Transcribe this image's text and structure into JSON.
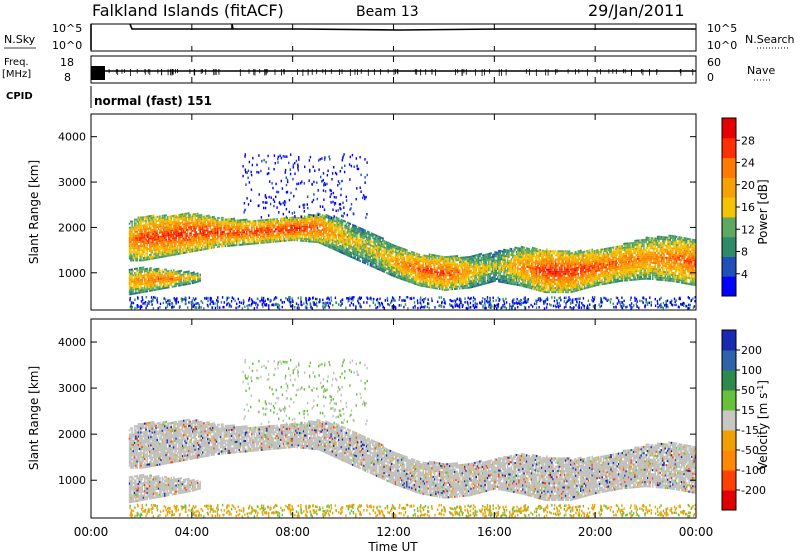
{
  "header": {
    "station": "Falkland Islands (fitACF)",
    "beam": "Beam 13",
    "date": "29/Jan/2011"
  },
  "top_panels": {
    "nsky": {
      "label": "N.Sky",
      "ticks": [
        "10^5",
        "10^0"
      ],
      "right_label": "N.Search",
      "right_ticks": [
        "10^5",
        "10^0"
      ]
    },
    "freq": {
      "label_line1": "Freq.",
      "label_line2": "[MHz]",
      "ticks": [
        "18",
        "8"
      ],
      "right_label": "Nave",
      "right_ticks": [
        "60",
        "0"
      ]
    },
    "cpid": {
      "label": "CPID",
      "mode_text": "normal (fast) 151"
    }
  },
  "colors": {
    "power_scale": [
      "#0000ff",
      "#1f4fb8",
      "#2f8a6a",
      "#5fa85f",
      "#f5c400",
      "#f5a300",
      "#ff7a00",
      "#ff3000",
      "#e60000"
    ],
    "velocity_scale": [
      "#1a2ab0",
      "#2f62a8",
      "#2e8a4a",
      "#66c23a",
      "#c8c8c0",
      "#f0a000",
      "#ff8800",
      "#ff4000",
      "#e00000"
    ],
    "ground_scatter": "#c0c0bc"
  },
  "chart_data": [
    {
      "type": "heatmap",
      "name_hint": "power",
      "ylabel": "Slant Range [km]",
      "yticks": [
        "1000",
        "2000",
        "3000",
        "4000"
      ],
      "ylim": [
        180,
        4500
      ],
      "xlim": [
        0,
        24
      ],
      "xticks": [
        "00:00",
        "04:00",
        "08:00",
        "12:00",
        "16:00",
        "20:00",
        "00:00"
      ],
      "colorbar": {
        "label": "Power [dB]",
        "ticks": [
          "4",
          "8",
          "12",
          "16",
          "20",
          "24",
          "28"
        ],
        "range": [
          0,
          32
        ]
      },
      "bands": [
        {
          "kind": "main",
          "x": [
            1.5,
            2,
            3,
            4,
            5,
            6,
            7,
            8,
            9,
            10,
            11,
            12,
            13,
            14,
            15,
            16,
            17,
            18,
            19,
            20,
            21,
            22,
            23,
            24
          ],
          "lower": [
            1250,
            1250,
            1350,
            1450,
            1550,
            1600,
            1650,
            1700,
            1650,
            1400,
            1150,
            900,
            700,
            600,
            650,
            800,
            700,
            550,
            550,
            700,
            800,
            850,
            800,
            700
          ],
          "upper": [
            2100,
            2250,
            2250,
            2300,
            2200,
            2150,
            2150,
            2200,
            2300,
            2150,
            1900,
            1600,
            1400,
            1350,
            1350,
            1450,
            1550,
            1500,
            1450,
            1500,
            1600,
            1750,
            1800,
            1700
          ],
          "core_power": [
            22,
            26,
            28,
            28,
            27,
            26,
            27,
            28,
            26,
            18,
            16,
            20,
            26,
            27,
            20,
            14,
            22,
            28,
            28,
            26,
            24,
            22,
            24,
            26
          ]
        },
        {
          "kind": "lower",
          "x": [
            1.5,
            2,
            3,
            4,
            4.3
          ],
          "lower": [
            500,
            550,
            650,
            750,
            800
          ],
          "upper": [
            1050,
            1100,
            1050,
            1000,
            950
          ],
          "core_power": [
            20,
            22,
            24,
            18,
            14
          ]
        }
      ]
    },
    {
      "type": "heatmap",
      "name_hint": "velocity",
      "ylabel": "Slant Range [km]",
      "yticks": [
        "1000",
        "2000",
        "3000",
        "4000"
      ],
      "ylim": [
        180,
        4500
      ],
      "xlim": [
        0,
        24
      ],
      "xticks": [
        "00:00",
        "04:00",
        "08:00",
        "12:00",
        "16:00",
        "20:00",
        "00:00"
      ],
      "xlabel": "Time UT",
      "colorbar": {
        "label": "Velocity [m s^-1]",
        "ticks": [
          "200",
          "100",
          "50",
          "15",
          "-15",
          "-50",
          "-100",
          "-200"
        ],
        "range": [
          -250,
          250
        ]
      }
    }
  ]
}
